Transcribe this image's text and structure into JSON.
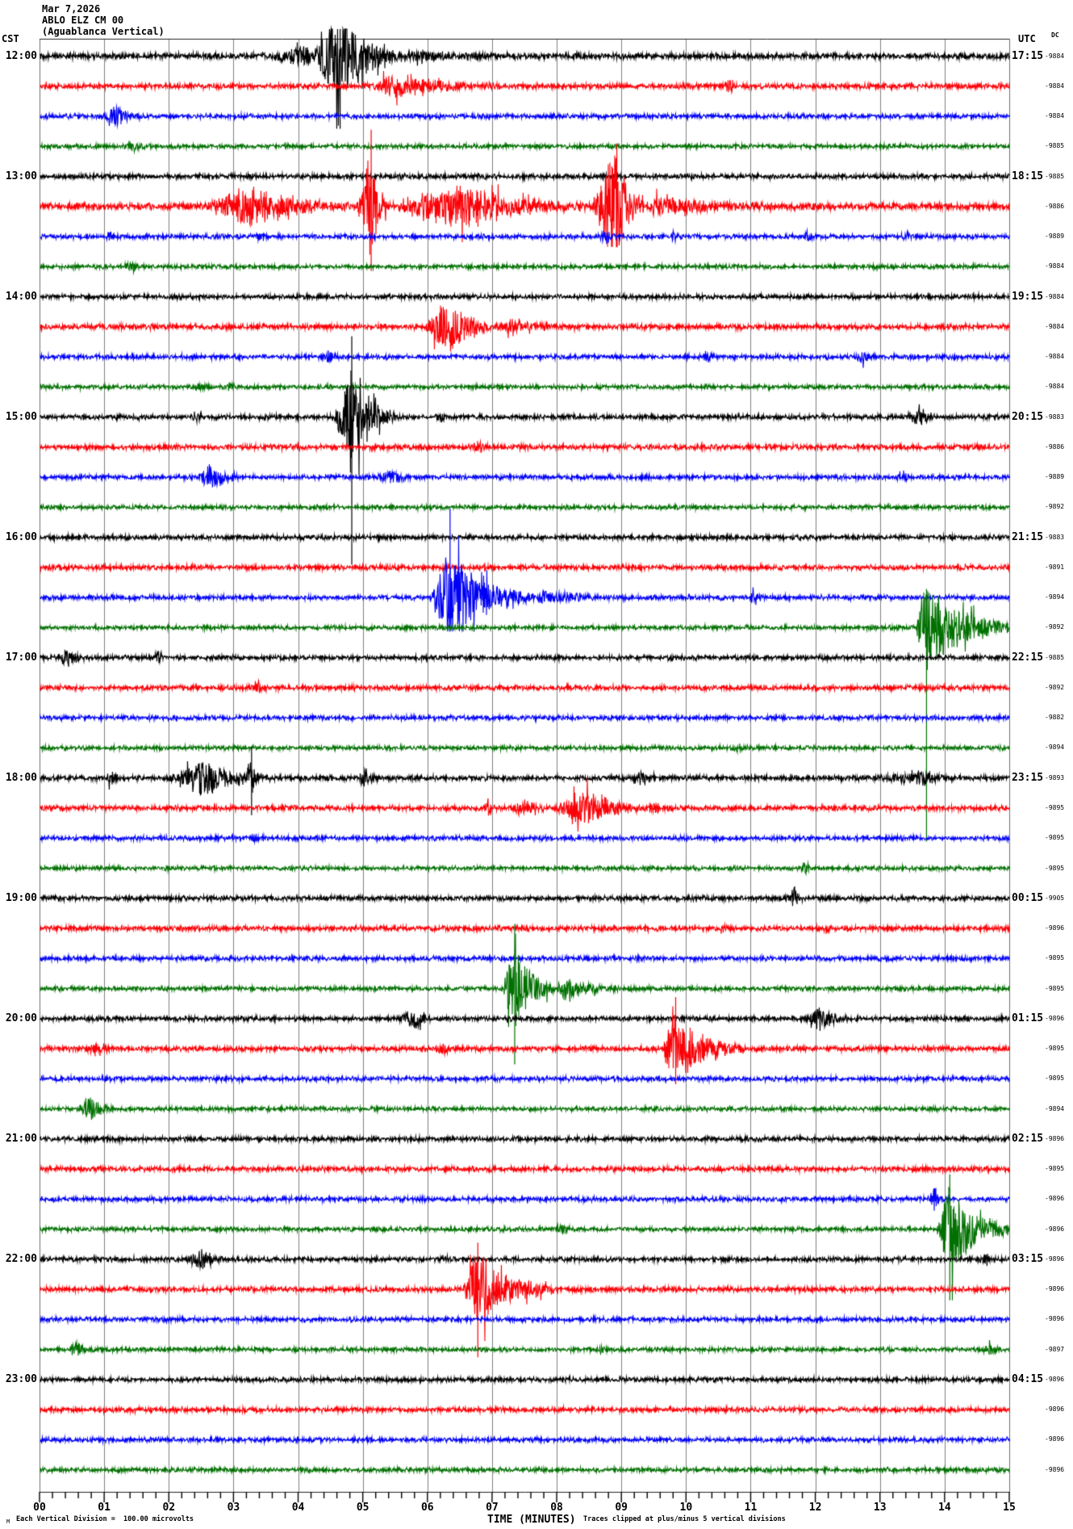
{
  "header": {
    "date": "Mar 7,2026",
    "station": "ABLO ELZ CM 00",
    "subtitle": "(Aguablanca Vertical)"
  },
  "axes": {
    "left_label": "CST",
    "right_label": "UTC",
    "dc_label": "DC",
    "x_title": "TIME (MINUTES)",
    "x_tick_labels": [
      "00",
      "01",
      "02",
      "03",
      "04",
      "05",
      "06",
      "07",
      "08",
      "09",
      "10",
      "11",
      "12",
      "13",
      "14",
      "15"
    ]
  },
  "footer": {
    "left_note": "Each Vertical Division =  100.00 microvolts",
    "right_note": "Traces clipped at plus/minus 5 vertical divisions",
    "watermark": "M"
  },
  "chart_data": {
    "type": "line",
    "subtype": "helicorder-seismogram",
    "title": "ABLO ELZ CM 00 (Aguablanca Vertical) Mar 7,2026",
    "xlabel": "TIME (MINUTES)",
    "x_range_minutes": [
      0,
      15
    ],
    "minor_ticks_per_minute": 5,
    "row_duration_minutes": 15,
    "grid_color": "#808080",
    "palette": {
      "black": "#000000",
      "red": "#fb0006",
      "blue": "#0000f6",
      "green": "#007000"
    },
    "event_fields": "s=start minute, e=end minute, p=peak minute, a=peak amplitude(px), u=clipped spike up extent(px), d=clipped spike down extent(px)",
    "rows": [
      {
        "color": "black",
        "cst": "12:00",
        "utc": "17:15",
        "dc": "-9884",
        "noise": 3.4,
        "events": [
          {
            "s": 3.5,
            "e": 4.2,
            "p": 4.15,
            "a": 12
          },
          {
            "s": 4.2,
            "e": 5.6,
            "p": 4.65,
            "a": 55,
            "u": 45,
            "d": 90
          },
          {
            "s": 5.6,
            "e": 7.4,
            "p": 5.9,
            "a": 7
          }
        ]
      },
      {
        "color": "red",
        "cst": "",
        "utc": "",
        "dc": "-9884",
        "noise": 3.2,
        "events": [
          {
            "s": 5.15,
            "e": 7.3,
            "p": 5.45,
            "a": 14
          },
          {
            "s": 10.55,
            "e": 10.9,
            "p": 10.7,
            "a": 9
          }
        ]
      },
      {
        "color": "blue",
        "cst": "",
        "utc": "",
        "dc": "-9884",
        "noise": 2.8,
        "events": [
          {
            "s": 1.0,
            "e": 1.55,
            "p": 1.18,
            "a": 14
          }
        ]
      },
      {
        "color": "green",
        "cst": "",
        "utc": "",
        "dc": "-9885",
        "noise": 2.6,
        "events": [
          {
            "s": 1.3,
            "e": 1.62,
            "p": 1.45,
            "a": 8
          }
        ]
      },
      {
        "color": "black",
        "cst": "13:00",
        "utc": "18:15",
        "dc": "-9885",
        "noise": 2.9,
        "events": []
      },
      {
        "color": "red",
        "cst": "",
        "utc": "",
        "dc": "-9886",
        "noise": 4.0,
        "events": [
          {
            "s": 2.55,
            "e": 4.9,
            "p": 3.3,
            "a": 23
          },
          {
            "s": 4.9,
            "e": 5.4,
            "p": 5.13,
            "a": 62,
            "u": 95,
            "d": 80
          },
          {
            "s": 5.4,
            "e": 8.55,
            "p": 6.6,
            "a": 26
          },
          {
            "s": 8.55,
            "e": 9.35,
            "p": 8.93,
            "a": 68,
            "u": 78,
            "d": 50
          },
          {
            "s": 9.35,
            "e": 11.6,
            "p": 9.6,
            "a": 13
          }
        ]
      },
      {
        "color": "blue",
        "cst": "",
        "utc": "",
        "dc": "-9889",
        "noise": 2.8,
        "events": [
          {
            "s": 0.98,
            "e": 1.25,
            "p": 1.1,
            "a": 6
          },
          {
            "s": 3.3,
            "e": 3.6,
            "p": 3.45,
            "a": 7
          },
          {
            "s": 8.6,
            "e": 9.0,
            "p": 8.78,
            "a": 7
          },
          {
            "s": 9.7,
            "e": 9.95,
            "p": 9.8,
            "a": 6
          },
          {
            "s": 11.75,
            "e": 12.05,
            "p": 11.9,
            "a": 7
          },
          {
            "s": 13.3,
            "e": 13.55,
            "p": 13.4,
            "a": 6
          }
        ]
      },
      {
        "color": "green",
        "cst": "",
        "utc": "",
        "dc": "-9884",
        "noise": 2.6,
        "events": [
          {
            "s": 1.3,
            "e": 1.62,
            "p": 1.45,
            "a": 7
          }
        ]
      },
      {
        "color": "black",
        "cst": "14:00",
        "utc": "19:15",
        "dc": "-9884",
        "noise": 2.8,
        "events": []
      },
      {
        "color": "red",
        "cst": "",
        "utc": "",
        "dc": "-9884",
        "noise": 3.2,
        "events": [
          {
            "s": 5.95,
            "e": 7.15,
            "p": 6.35,
            "a": 32
          },
          {
            "s": 7.15,
            "e": 8.3,
            "p": 7.3,
            "a": 9
          }
        ]
      },
      {
        "color": "blue",
        "cst": "",
        "utc": "",
        "dc": "-9884",
        "noise": 2.8,
        "events": [
          {
            "s": 4.35,
            "e": 4.68,
            "p": 4.5,
            "a": 9
          },
          {
            "s": 10.2,
            "e": 10.5,
            "p": 10.35,
            "a": 7
          },
          {
            "s": 12.6,
            "e": 12.92,
            "p": 12.75,
            "a": 8
          }
        ]
      },
      {
        "color": "green",
        "cst": "",
        "utc": "",
        "dc": "-9884",
        "noise": 2.6,
        "events": [
          {
            "s": 2.38,
            "e": 2.62,
            "p": 2.5,
            "a": 6
          },
          {
            "s": 2.85,
            "e": 3.08,
            "p": 2.95,
            "a": 6
          }
        ]
      },
      {
        "color": "black",
        "cst": "15:00",
        "utc": "20:15",
        "dc": "-9883",
        "noise": 2.9,
        "events": [
          {
            "s": 2.32,
            "e": 2.6,
            "p": 2.45,
            "a": 10
          },
          {
            "s": 4.55,
            "e": 5.5,
            "p": 4.83,
            "a": 58,
            "u": 100,
            "d": 183
          },
          {
            "s": 6.08,
            "e": 6.35,
            "p": 6.2,
            "a": 7
          },
          {
            "s": 13.35,
            "e": 13.95,
            "p": 13.6,
            "a": 10
          }
        ]
      },
      {
        "color": "red",
        "cst": "",
        "utc": "",
        "dc": "-9886",
        "noise": 3.2,
        "events": [
          {
            "s": 6.68,
            "e": 6.95,
            "p": 6.8,
            "a": 9
          }
        ]
      },
      {
        "color": "blue",
        "cst": "",
        "utc": "",
        "dc": "-9889",
        "noise": 2.8,
        "events": [
          {
            "s": 2.45,
            "e": 3.15,
            "p": 2.62,
            "a": 16
          },
          {
            "s": 5.1,
            "e": 5.9,
            "p": 5.5,
            "a": 7
          },
          {
            "s": 13.25,
            "e": 13.55,
            "p": 13.37,
            "a": 8
          }
        ]
      },
      {
        "color": "green",
        "cst": "",
        "utc": "",
        "dc": "-9892",
        "noise": 2.6,
        "events": []
      },
      {
        "color": "black",
        "cst": "16:00",
        "utc": "21:15",
        "dc": "-9883",
        "noise": 2.8,
        "events": []
      },
      {
        "color": "red",
        "cst": "",
        "utc": "",
        "dc": "-9891",
        "noise": 3.0,
        "events": []
      },
      {
        "color": "blue",
        "cst": "",
        "utc": "",
        "dc": "-9894",
        "noise": 2.8,
        "events": [
          {
            "s": 6.02,
            "e": 7.65,
            "p": 6.35,
            "a": 55,
            "u": 110,
            "d": 42
          },
          {
            "s": 7.65,
            "e": 9.4,
            "p": 7.8,
            "a": 8
          },
          {
            "s": 10.95,
            "e": 11.25,
            "p": 11.08,
            "a": 9
          }
        ]
      },
      {
        "color": "green",
        "cst": "",
        "utc": "",
        "dc": "-9892",
        "noise": 2.6,
        "events": [
          {
            "s": 13.55,
            "e": 15.0,
            "p": 13.72,
            "a": 58,
            "u": 48,
            "d": 265
          }
        ]
      },
      {
        "color": "black",
        "cst": "17:00",
        "utc": "22:15",
        "dc": "-9885",
        "noise": 2.8,
        "events": [
          {
            "s": 0.22,
            "e": 0.85,
            "p": 0.45,
            "a": 10
          },
          {
            "s": 1.72,
            "e": 2.0,
            "p": 1.85,
            "a": 8
          }
        ]
      },
      {
        "color": "red",
        "cst": "",
        "utc": "",
        "dc": "-9892",
        "noise": 3.0,
        "events": [
          {
            "s": 3.28,
            "e": 3.55,
            "p": 3.4,
            "a": 7
          }
        ]
      },
      {
        "color": "blue",
        "cst": "",
        "utc": "",
        "dc": "-9882",
        "noise": 2.8,
        "events": []
      },
      {
        "color": "green",
        "cst": "",
        "utc": "",
        "dc": "-9894",
        "noise": 2.6,
        "events": [
          {
            "s": 10.68,
            "e": 10.95,
            "p": 10.8,
            "a": 6
          }
        ]
      },
      {
        "color": "black",
        "cst": "18:00",
        "utc": "23:15",
        "dc": "-9893",
        "noise": 3.0,
        "events": [
          {
            "s": 1.02,
            "e": 1.3,
            "p": 1.1,
            "a": 12
          },
          {
            "s": 1.95,
            "e": 3.65,
            "p": 2.6,
            "a": 20
          },
          {
            "s": 3.2,
            "e": 3.38,
            "p": 3.28,
            "a": 28,
            "d": 46
          },
          {
            "s": 4.9,
            "e": 5.25,
            "p": 5.05,
            "a": 12
          },
          {
            "s": 9.05,
            "e": 9.7,
            "p": 9.35,
            "a": 7
          },
          {
            "s": 12.9,
            "e": 14.2,
            "p": 13.7,
            "a": 8
          }
        ]
      },
      {
        "color": "red",
        "cst": "",
        "utc": "",
        "dc": "-9895",
        "noise": 3.0,
        "events": [
          {
            "s": 6.85,
            "e": 7.12,
            "p": 6.94,
            "a": 10,
            "d": 20
          },
          {
            "s": 7.2,
            "e": 7.95,
            "p": 7.6,
            "a": 8
          },
          {
            "s": 7.95,
            "e": 9.35,
            "p": 8.5,
            "a": 22
          },
          {
            "s": 9.35,
            "e": 9.85,
            "p": 9.45,
            "a": 9
          }
        ]
      },
      {
        "color": "blue",
        "cst": "",
        "utc": "",
        "dc": "-9895",
        "noise": 2.8,
        "events": [
          {
            "s": 3.25,
            "e": 3.52,
            "p": 3.37,
            "a": 7
          }
        ]
      },
      {
        "color": "green",
        "cst": "",
        "utc": "",
        "dc": "-9895",
        "noise": 2.6,
        "events": [
          {
            "s": 11.7,
            "e": 12.0,
            "p": 11.85,
            "a": 7
          }
        ]
      },
      {
        "color": "black",
        "cst": "19:00",
        "utc": "00:15",
        "dc": "-9905",
        "noise": 2.8,
        "events": [
          {
            "s": 11.52,
            "e": 11.85,
            "p": 11.68,
            "a": 13,
            "u": 18
          }
        ]
      },
      {
        "color": "red",
        "cst": "",
        "utc": "",
        "dc": "-9896",
        "noise": 3.0,
        "events": [
          {
            "s": 10.48,
            "e": 10.72,
            "p": 10.6,
            "a": 6
          },
          {
            "s": 12.08,
            "e": 12.32,
            "p": 12.2,
            "a": 6
          }
        ]
      },
      {
        "color": "blue",
        "cst": "",
        "utc": "",
        "dc": "-9895",
        "noise": 2.8,
        "events": []
      },
      {
        "color": "green",
        "cst": "",
        "utc": "",
        "dc": "-9895",
        "noise": 2.6,
        "events": [
          {
            "s": 7.15,
            "e": 7.98,
            "p": 7.35,
            "a": 55,
            "u": 80,
            "d": 94
          },
          {
            "s": 7.98,
            "e": 9.25,
            "p": 8.1,
            "a": 12
          }
        ]
      },
      {
        "color": "black",
        "cst": "20:00",
        "utc": "01:15",
        "dc": "-9896",
        "noise": 2.8,
        "events": [
          {
            "s": 5.55,
            "e": 6.18,
            "p": 5.82,
            "a": 12
          },
          {
            "s": 11.82,
            "e": 12.52,
            "p": 12.1,
            "a": 14
          }
        ]
      },
      {
        "color": "red",
        "cst": "",
        "utc": "",
        "dc": "-9895",
        "noise": 3.0,
        "events": [
          {
            "s": 0.68,
            "e": 1.12,
            "p": 0.9,
            "a": 9
          },
          {
            "s": 6.12,
            "e": 6.4,
            "p": 6.25,
            "a": 8
          },
          {
            "s": 9.62,
            "e": 10.9,
            "p": 9.84,
            "a": 42,
            "u": 64,
            "d": 44
          }
        ]
      },
      {
        "color": "blue",
        "cst": "",
        "utc": "",
        "dc": "-9895",
        "noise": 2.8,
        "events": []
      },
      {
        "color": "green",
        "cst": "",
        "utc": "",
        "dc": "-9894",
        "noise": 2.6,
        "events": [
          {
            "s": 0.58,
            "e": 1.15,
            "p": 0.8,
            "a": 15,
            "d": 26
          }
        ]
      },
      {
        "color": "black",
        "cst": "21:00",
        "utc": "02:15",
        "dc": "-9896",
        "noise": 2.8,
        "events": []
      },
      {
        "color": "red",
        "cst": "",
        "utc": "",
        "dc": "-9895",
        "noise": 3.0,
        "events": []
      },
      {
        "color": "blue",
        "cst": "",
        "utc": "",
        "dc": "-9896",
        "noise": 2.8,
        "events": [
          {
            "s": 13.72,
            "e": 14.0,
            "p": 13.85,
            "a": 13
          }
        ]
      },
      {
        "color": "green",
        "cst": "",
        "utc": "",
        "dc": "-9896",
        "noise": 2.6,
        "events": [
          {
            "s": 7.98,
            "e": 8.25,
            "p": 8.1,
            "a": 8
          },
          {
            "s": 13.88,
            "e": 15.0,
            "p": 14.08,
            "a": 55,
            "u": 68,
            "d": 88
          }
        ]
      },
      {
        "color": "black",
        "cst": "22:00",
        "utc": "03:15",
        "dc": "-9896",
        "noise": 2.8,
        "events": [
          {
            "s": 2.25,
            "e": 2.95,
            "p": 2.5,
            "a": 12
          },
          {
            "s": 6.18,
            "e": 6.45,
            "p": 6.3,
            "a": 7
          },
          {
            "s": 14.52,
            "e": 14.8,
            "p": 14.65,
            "a": 8
          }
        ]
      },
      {
        "color": "red",
        "cst": "",
        "utc": "",
        "dc": "-9896",
        "noise": 3.0,
        "events": [
          {
            "s": 6.55,
            "e": 7.95,
            "p": 6.78,
            "a": 46,
            "u": 58,
            "d": 84
          }
        ]
      },
      {
        "color": "blue",
        "cst": "",
        "utc": "",
        "dc": "-9896",
        "noise": 2.8,
        "events": []
      },
      {
        "color": "green",
        "cst": "",
        "utc": "",
        "dc": "-9897",
        "noise": 2.6,
        "events": [
          {
            "s": 0.4,
            "e": 0.98,
            "p": 0.6,
            "a": 8
          },
          {
            "s": 8.58,
            "e": 8.85,
            "p": 8.7,
            "a": 6
          },
          {
            "s": 14.55,
            "e": 14.9,
            "p": 14.72,
            "a": 7
          }
        ]
      },
      {
        "color": "black",
        "cst": "23:00",
        "utc": "04:15",
        "dc": "-9896",
        "noise": 2.8,
        "events": []
      },
      {
        "color": "red",
        "cst": "",
        "utc": "",
        "dc": "-9896",
        "noise": 3.0,
        "events": []
      },
      {
        "color": "blue",
        "cst": "",
        "utc": "",
        "dc": "-9896",
        "noise": 2.8,
        "events": []
      },
      {
        "color": "green",
        "cst": "",
        "utc": "",
        "dc": "-9896",
        "noise": 2.7,
        "events": []
      }
    ]
  }
}
